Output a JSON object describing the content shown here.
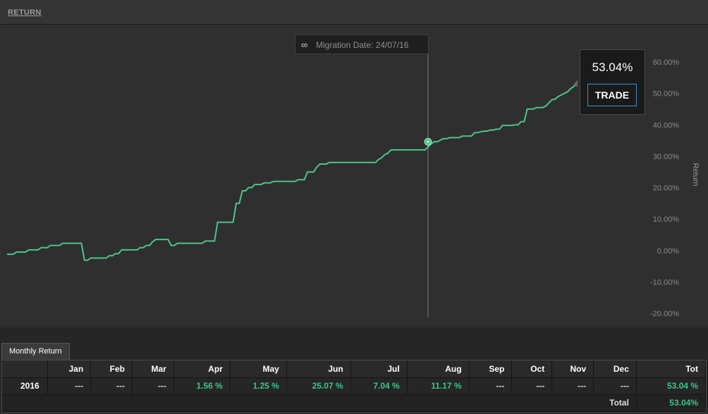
{
  "header": {
    "title": "RETURN"
  },
  "migration": {
    "label": "Migration Date: 24/07/16"
  },
  "tooltip": {
    "value": "53.04%",
    "button": "TRADE"
  },
  "colors": {
    "line": "#4cc48a",
    "positive": "#3cc48a",
    "button_border": "#3f8fd0"
  },
  "chart_data": {
    "type": "line",
    "xlabel": "",
    "ylabel": "Return",
    "ylim": [
      -20,
      60
    ],
    "yticks": [
      -20,
      -10,
      0,
      10,
      20,
      30,
      40,
      50,
      60
    ],
    "ytick_labels": [
      "-20.00%",
      "-10.00%",
      "0.00%",
      "10.00%",
      "20.00%",
      "30.00%",
      "40.00%",
      "50.00%",
      "60.00%"
    ],
    "grid": false,
    "highlight_value": 34.6,
    "series": [
      {
        "values": [
          -1.2,
          -1.2,
          -1.2,
          -0.5,
          -0.5,
          -0.5,
          -0.5,
          0.2,
          0.2,
          0.2,
          0.2,
          0.9,
          0.9,
          0.9,
          1.6,
          1.6,
          1.6,
          1.6,
          2.3,
          2.3,
          2.3,
          2.3,
          2.3,
          2.3,
          2.3,
          -3.1,
          -3.1,
          -2.4,
          -2.4,
          -2.4,
          -2.4,
          -2.4,
          -2.4,
          -1.7,
          -1.7,
          -1,
          -1,
          0.2,
          0.2,
          0.2,
          0.2,
          0.2,
          0.2,
          0.9,
          0.9,
          1.6,
          1.6,
          2.8,
          3.5,
          3.5,
          3.5,
          3.5,
          3.5,
          1.6,
          1.6,
          2.3,
          2.3,
          2.3,
          2.3,
          2.3,
          2.3,
          2.3,
          2.3,
          2.3,
          3,
          3,
          3,
          3,
          9,
          9,
          9,
          9,
          9,
          9,
          15,
          15,
          19,
          19,
          20,
          20,
          21,
          21,
          21,
          21.5,
          21.5,
          21.5,
          22,
          22,
          22,
          22,
          22,
          22,
          22,
          22,
          22.5,
          22.5,
          22.5,
          25,
          25,
          25,
          26.5,
          27.5,
          27.5,
          27.5,
          28,
          28,
          28,
          28,
          28,
          28,
          28,
          28,
          28,
          28,
          28,
          28,
          28,
          28,
          28,
          28,
          29,
          29.5,
          30.5,
          31,
          32,
          32,
          32,
          32,
          32,
          32,
          32,
          32,
          32,
          32,
          32,
          32,
          33,
          34,
          34.6,
          34.6,
          35.2,
          35.6,
          35.6,
          35.9,
          35.9,
          35.9,
          35.9,
          36.4,
          36.4,
          36.4,
          36.4,
          37.5,
          37.5,
          37.8,
          38,
          38,
          38.3,
          38.3,
          38.6,
          38.6,
          39.8,
          39.8,
          39.8,
          39.8,
          40,
          40,
          41,
          41,
          45,
          45,
          45,
          45.5,
          45.5,
          45.5,
          46,
          47,
          48,
          48.2,
          49,
          49.5,
          50,
          50.5,
          51.5,
          52.2,
          53.04
        ]
      }
    ]
  },
  "monthly": {
    "tab": "Monthly Return",
    "headers": [
      "",
      "Jan",
      "Feb",
      "Mar",
      "Apr",
      "May",
      "Jun",
      "Jul",
      "Aug",
      "Sep",
      "Oct",
      "Nov",
      "Dec",
      "Tot"
    ],
    "row": [
      "2016",
      "---",
      "---",
      "---",
      "1.56 %",
      "1.25 %",
      "25.07 %",
      "7.04 %",
      "11.17 %",
      "---",
      "---",
      "---",
      "---",
      "53.04 %"
    ],
    "total_label": "Total",
    "total_value": "53.04%"
  }
}
